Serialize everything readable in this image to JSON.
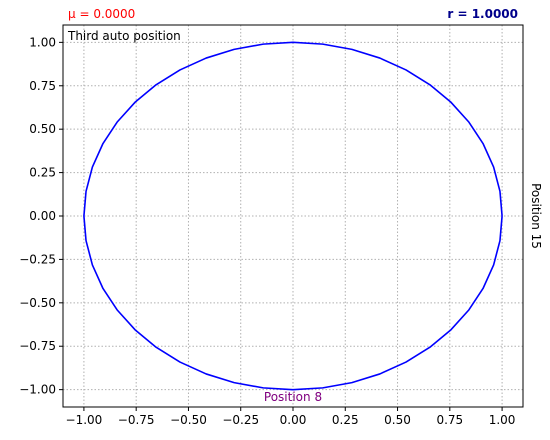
{
  "chart_data": {
    "type": "line",
    "title": "",
    "xlabel": "",
    "ylabel": "",
    "xlim": [
      -1.1,
      1.1
    ],
    "ylim": [
      -1.1,
      1.1
    ],
    "xticks": [
      -1.0,
      -0.75,
      -0.5,
      -0.25,
      0.0,
      0.25,
      0.5,
      0.75,
      1.0
    ],
    "yticks": [
      -1.0,
      -0.75,
      -0.5,
      -0.25,
      0.0,
      0.25,
      0.5,
      0.75,
      1.0
    ],
    "xtick_labels": [
      "−1.00",
      "−0.75",
      "−0.50",
      "−0.25",
      "0.00",
      "0.25",
      "0.50",
      "0.75",
      "1.00"
    ],
    "ytick_labels": [
      "−1.00",
      "−0.75",
      "−0.50",
      "−0.25",
      "0.00",
      "0.25",
      "0.50",
      "0.75",
      "1.00"
    ],
    "grid": true,
    "grid_style": "dotted",
    "series": [
      {
        "color": "#0000ff",
        "x": [
          1.0,
          0.9898,
          0.9595,
          0.9096,
          0.8413,
          0.7557,
          0.6549,
          0.5406,
          0.4154,
          0.2817,
          0.1423,
          0.0,
          -0.1423,
          -0.2817,
          -0.4154,
          -0.5406,
          -0.6549,
          -0.7557,
          -0.8413,
          -0.9096,
          -0.9595,
          -0.9898,
          -1.0,
          -0.9898,
          -0.9595,
          -0.9096,
          -0.8413,
          -0.7557,
          -0.6549,
          -0.5406,
          -0.4154,
          -0.2817,
          -0.1423,
          0.0,
          0.1423,
          0.2817,
          0.4154,
          0.5406,
          0.6549,
          0.7557,
          0.8413,
          0.9096,
          0.9595,
          0.9898,
          1.0
        ],
        "y": [
          0.0,
          0.1423,
          0.2817,
          0.4154,
          0.5406,
          0.6549,
          0.7557,
          0.8413,
          0.9096,
          0.9595,
          0.9898,
          1.0,
          0.9898,
          0.9595,
          0.9096,
          0.8413,
          0.7557,
          0.6549,
          0.5406,
          0.4154,
          0.2817,
          0.1423,
          0.0,
          -0.1423,
          -0.2817,
          -0.4154,
          -0.5406,
          -0.6549,
          -0.7557,
          -0.8413,
          -0.9096,
          -0.9595,
          -0.9898,
          -1.0,
          -0.9898,
          -0.9595,
          -0.9096,
          -0.8413,
          -0.7557,
          -0.6549,
          -0.5406,
          -0.4154,
          -0.2817,
          -0.1423,
          0.0
        ]
      }
    ],
    "annotations": {
      "mu_label": "μ = 0.0000",
      "mu_color": "#ff0000",
      "r_label": "r = 1.0000",
      "r_color": "#00008b",
      "corner_label": "Third auto position",
      "bottom_label": "Position 8",
      "bottom_color": "#800080",
      "right_label": "Position 15"
    }
  }
}
